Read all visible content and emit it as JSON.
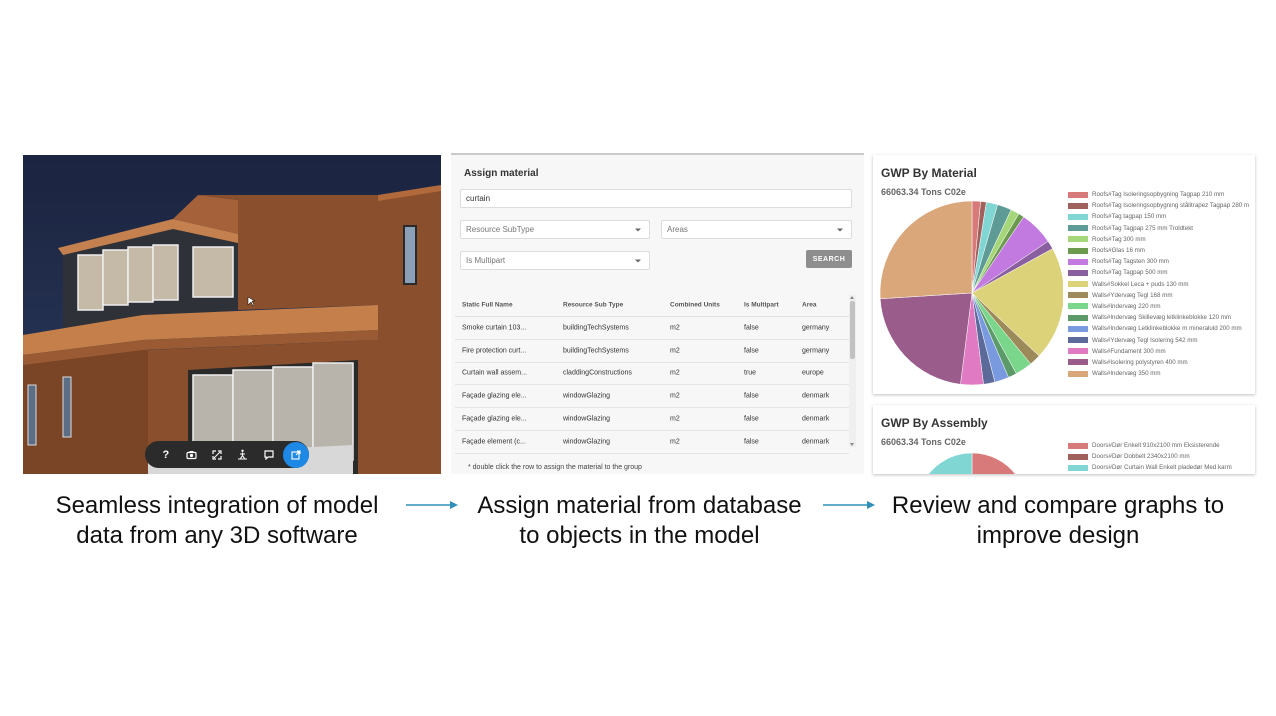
{
  "viewer": {
    "toolbar": [
      {
        "name": "help-icon",
        "glyph": "?"
      },
      {
        "name": "camera-icon",
        "glyph": ""
      },
      {
        "name": "fullscreen-icon",
        "glyph": ""
      },
      {
        "name": "walk-icon",
        "glyph": ""
      },
      {
        "name": "comment-icon",
        "glyph": ""
      },
      {
        "name": "open-external-icon",
        "glyph": "",
        "active": true
      }
    ]
  },
  "assign": {
    "title": "Assign material",
    "search_value": "curtain",
    "resource_subtype_placeholder": "Resource SubType",
    "areas_placeholder": "Areas",
    "is_multipart_placeholder": "Is Multipart",
    "search_button": "SEARCH",
    "columns": [
      "Static Full Name",
      "Resource Sub Type",
      "Combined Units",
      "Is Multipart",
      "Area"
    ],
    "rows": [
      [
        "Smoke curtain 103...",
        "buildingTechSystems",
        "m2",
        "false",
        "germany"
      ],
      [
        "Fire protection curt...",
        "buildingTechSystems",
        "m2",
        "false",
        "germany"
      ],
      [
        "Curtain wall assem...",
        "claddingConstructions",
        "m2",
        "true",
        "europe"
      ],
      [
        "Façade glazing ele...",
        "windowGlazing",
        "m2",
        "false",
        "denmark"
      ],
      [
        "Façade glazing ele...",
        "windowGlazing",
        "m2",
        "false",
        "denmark"
      ],
      [
        "Façade element (c...",
        "windowGlazing",
        "m2",
        "false",
        "denmark"
      ]
    ],
    "note": "* double click the row to assign the material to the group"
  },
  "gwp_material": {
    "title": "GWP By Material",
    "total": "66063.34 Tons C02e",
    "legend": [
      {
        "label": "Roofs#Tag Isoleringsopbygning Tagpap 210 mm",
        "color": "#d97a7a"
      },
      {
        "label": "Roofs#Tag Isoleringsopbygning stålitrapez Tagpap 280 m",
        "color": "#a0605c"
      },
      {
        "label": "Roofs#Tag tagpap 150 mm",
        "color": "#7fd6d3"
      },
      {
        "label": "Roofs#Tag Tagpap 275 mm Troldtekt",
        "color": "#5e9a96"
      },
      {
        "label": "Roofs#Tag 300 mm",
        "color": "#a6d67a"
      },
      {
        "label": "Roofs#Glas 16 mm",
        "color": "#6b9a4e"
      },
      {
        "label": "Roofs#Tag Tagsten 300 mm",
        "color": "#c27ae0"
      },
      {
        "label": "Roofs#Tag Tagpap 500 mm",
        "color": "#8a5fa0"
      },
      {
        "label": "Walls#Sokkel Leca + puds 130 mm",
        "color": "#dcd27a"
      },
      {
        "label": "Walls#Ydervæg Tegl 168 mm",
        "color": "#9c8a5a"
      },
      {
        "label": "Walls#Indervæg 220 mm",
        "color": "#7ad68a"
      },
      {
        "label": "Walls#Indervæg Skillevæg letklinkeblokke 120 mm",
        "color": "#5c9a6a"
      },
      {
        "label": "Walls#Indervæg Letklinkeblokke m mineraluld 200 mm",
        "color": "#7a9ae0"
      },
      {
        "label": "Walls#Ydervæg Tegl Isolering 542 mm",
        "color": "#5c6a9a"
      },
      {
        "label": "Walls#Fundament 300 mm",
        "color": "#e07ac2"
      },
      {
        "label": "Walls#Isolering polystyren 400 mm",
        "color": "#9a5c8a"
      },
      {
        "label": "Walls#Indervæg 350 mm",
        "color": "#d9a77a"
      }
    ]
  },
  "gwp_assembly": {
    "title": "GWP By Assembly",
    "total": "66063.34 Tons C02e",
    "legend": [
      {
        "label": "Doors#Dør Enkelt 910x2100 mm Eksisterende",
        "color": "#d97a7a"
      },
      {
        "label": "Doors#Dør Dobbelt 2340x2100 mm",
        "color": "#a0605c"
      },
      {
        "label": "Doors#Dør Curtain Wall Enkelt pladedør Med karm",
        "color": "#7fd6d3"
      }
    ]
  },
  "chart_data": [
    {
      "type": "pie",
      "title": "GWP By Material",
      "subtitle": "66063.34 Tons C02e",
      "categories": [
        "Roofs#Tag Isoleringsopbygning Tagpap 210 mm",
        "Roofs#Tag Isoleringsopbygning stålitrapez Tagpap 280 m",
        "Roofs#Tag tagpap 150 mm",
        "Roofs#Tag Tagpap 275 mm Troldtekt",
        "Roofs#Tag 300 mm",
        "Roofs#Glas 16 mm",
        "Roofs#Tag Tagsten 300 mm",
        "Roofs#Tag Tagpap 500 mm",
        "Walls#Sokkel Leca + puds 130 mm",
        "Walls#Ydervæg Tegl 168 mm",
        "Walls#Indervæg 220 mm",
        "Walls#Indervæg Skillevæg letklinkeblokke 120 mm",
        "Walls#Indervæg Letklinkeblokke m mineraluld 200 mm",
        "Walls#Ydervæg Tegl Isolering 542 mm",
        "Walls#Fundament 300 mm",
        "Walls#Isolering polystyren 400 mm",
        "Walls#Indervæg 350 mm"
      ],
      "values": [
        1.5,
        1,
        2,
        2.5,
        1.5,
        1,
        6,
        1.5,
        20,
        2,
        3,
        1.5,
        2.5,
        2,
        4,
        22,
        26
      ],
      "colors": [
        "#d97a7a",
        "#a0605c",
        "#7fd6d3",
        "#5e9a96",
        "#a6d67a",
        "#6b9a4e",
        "#c27ae0",
        "#8a5fa0",
        "#dcd27a",
        "#9c8a5a",
        "#7ad68a",
        "#5c9a6a",
        "#7a9ae0",
        "#5c6a9a",
        "#e07ac2",
        "#9a5c8a",
        "#d9a77a"
      ],
      "legend": "right"
    },
    {
      "type": "pie",
      "title": "GWP By Assembly",
      "subtitle": "66063.34 Tons C02e",
      "categories": [
        "Doors#Dør Enkelt 910x2100 mm Eksisterende",
        "Doors#Dør Dobbelt 2340x2100 mm",
        "Doors#Dør Curtain Wall Enkelt pladedør Med karm"
      ],
      "values": [
        3,
        2,
        5
      ],
      "colors": [
        "#d97a7a",
        "#a0605c",
        "#7fd6d3"
      ],
      "legend": "right"
    }
  ],
  "captions": {
    "c1_line1": "Seamless integration of model",
    "c1_line2": "data from any 3D software",
    "c2_line1": "Assign material from database",
    "c2_line2": "to objects in the model",
    "c3_line1": "Review and compare graphs to",
    "c3_line2": "improve design"
  }
}
